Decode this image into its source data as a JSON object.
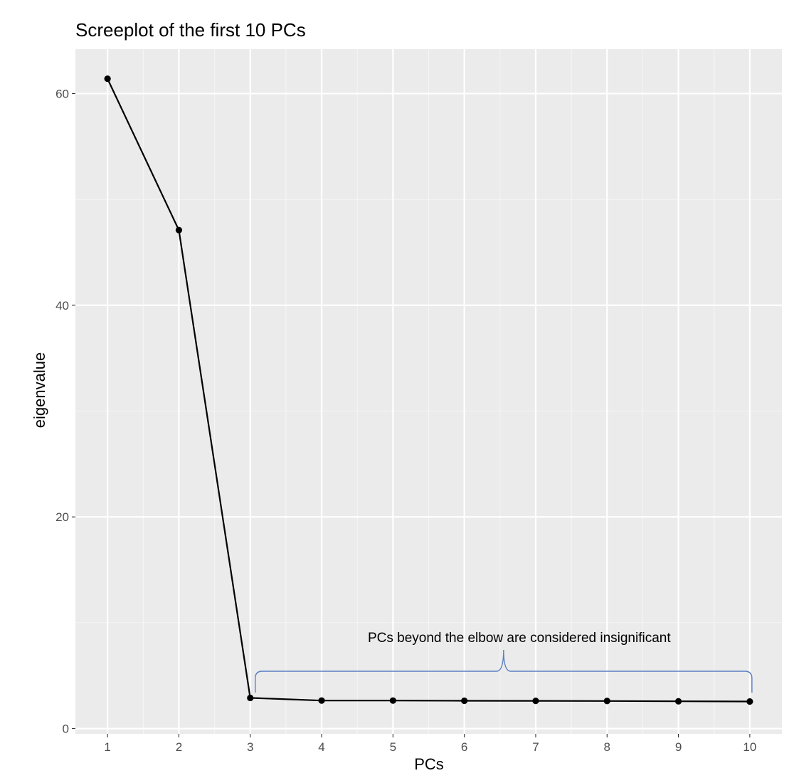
{
  "chart_data": {
    "type": "line",
    "title": "Screeplot of the first 10 PCs",
    "xlabel": "PCs",
    "ylabel": "eigenvalue",
    "x": [
      1,
      2,
      3,
      4,
      5,
      6,
      7,
      8,
      9,
      10
    ],
    "series": [
      {
        "values": [
          61.4,
          47.1,
          2.9,
          2.65,
          2.65,
          2.63,
          2.62,
          2.61,
          2.58,
          2.56
        ]
      }
    ],
    "x_ticks": [
      "1",
      "2",
      "3",
      "4",
      "5",
      "6",
      "7",
      "8",
      "9",
      "10"
    ],
    "y_ticks": [
      "0",
      "20",
      "40",
      "60"
    ],
    "xlim": [
      0.55,
      10.45
    ],
    "ylim": [
      -0.5,
      64.2
    ],
    "grid": true,
    "annotation": {
      "text": "PCs beyond the elbow are considered insignificant",
      "x_range": [
        3.07,
        10.03
      ]
    },
    "colors": {
      "panel": "#ebebeb",
      "grid_major": "#ffffff",
      "grid_minor": "#f5f5f5",
      "line": "#000000",
      "brace": "#5a7fc4"
    }
  }
}
